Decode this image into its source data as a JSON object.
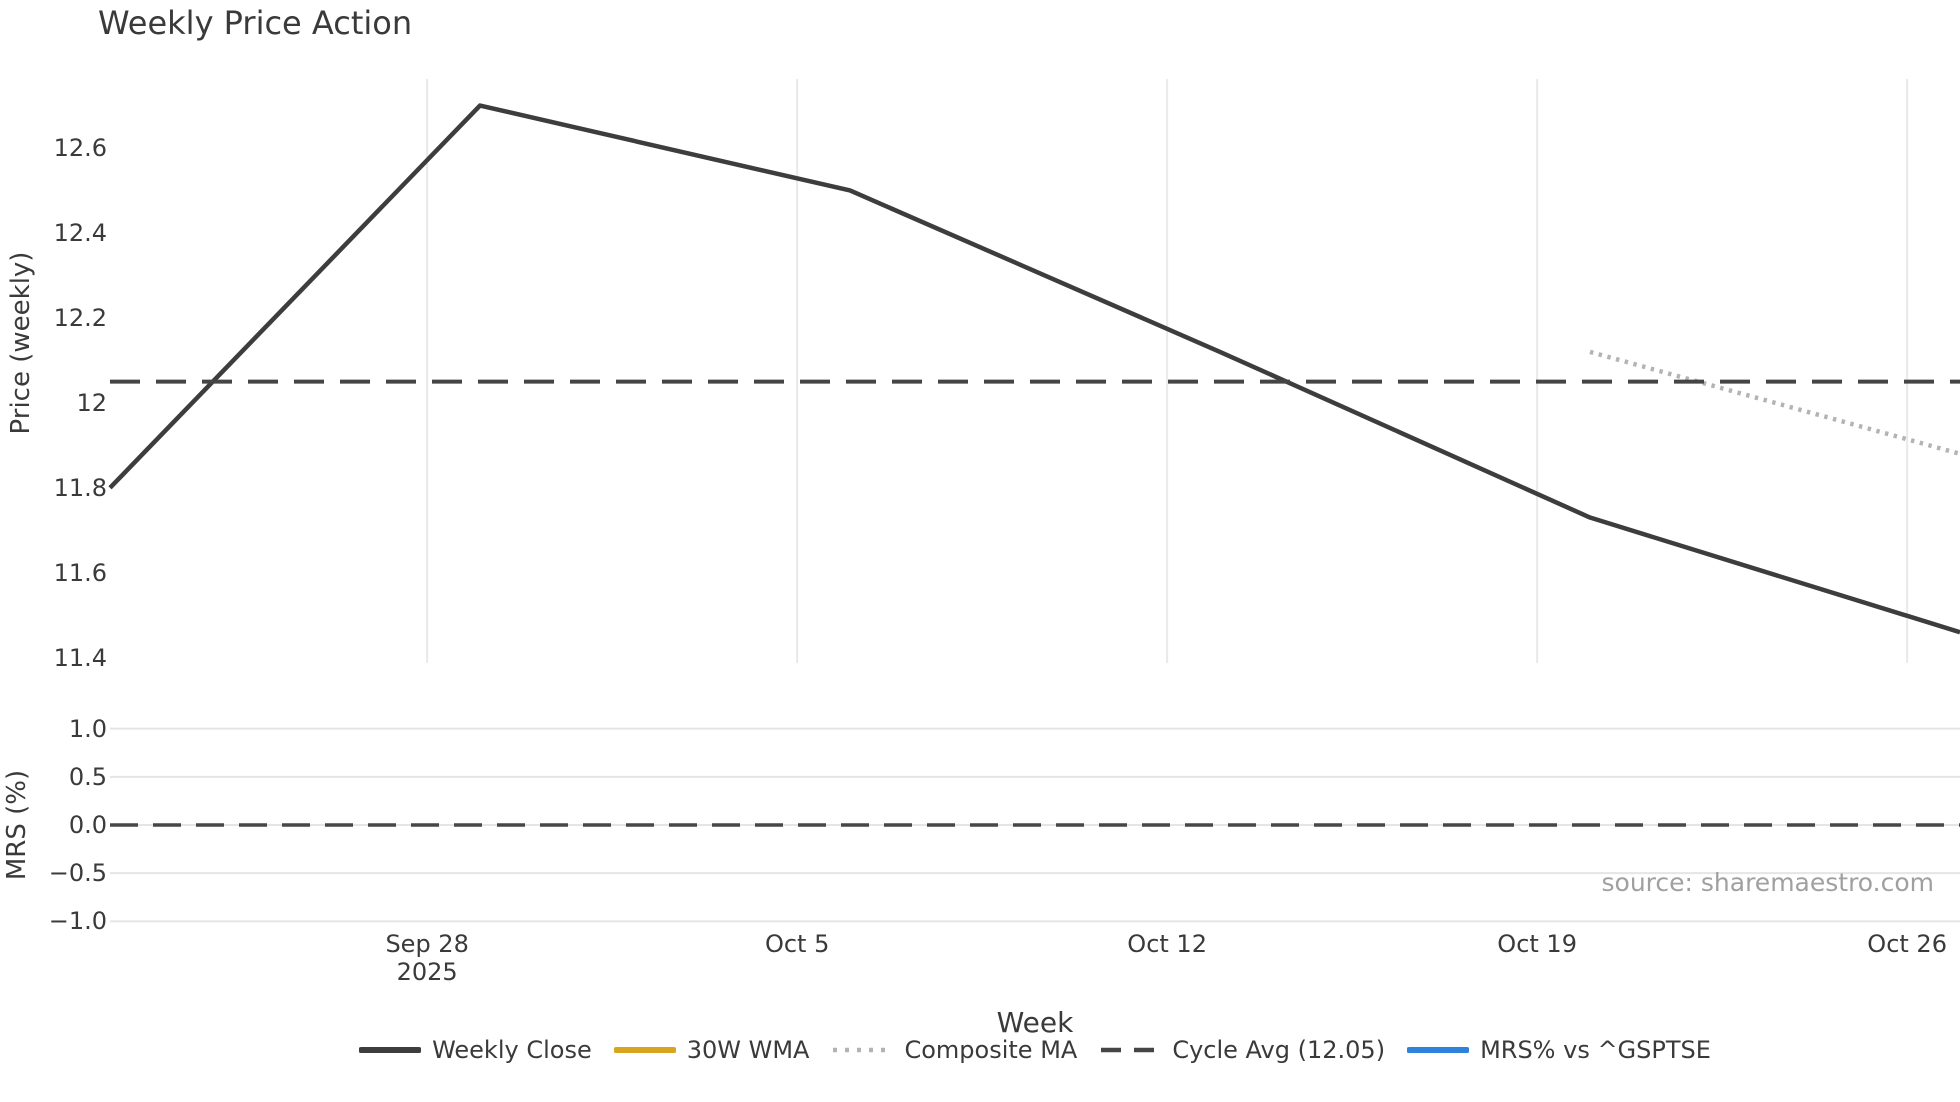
{
  "chart_data": {
    "type": "line",
    "title": "Weekly Price Action",
    "source": "source: sharemaestro.com",
    "x_axis": {
      "label": "Week",
      "tick_labels": [
        "Sep 28",
        "Oct 5",
        "Oct 12",
        "Oct 19",
        "Oct 26"
      ],
      "tick_days": [
        6,
        13,
        20,
        27,
        34
      ],
      "year_label": "2025",
      "domain_days": [
        0,
        35
      ],
      "point_dates": [
        "2025-09-22",
        "2025-09-29",
        "2025-10-06",
        "2025-10-13",
        "2025-10-20",
        "2025-10-27"
      ]
    },
    "panels": [
      {
        "ylabel": "Price (weekly)",
        "ylim": [
          11.3875,
          12.7625
        ],
        "ytick_values": [
          12.6,
          12.4,
          12.2,
          12,
          11.8,
          11.6,
          11.4
        ],
        "ytick_labels": [
          "12.6",
          "12.4",
          "12.2",
          "12",
          "11.8",
          "11.6",
          "11.4"
        ],
        "grid": "vertical"
      },
      {
        "ylabel": "MRS (%)",
        "ylim": [
          -1.1,
          1.1
        ],
        "ytick_values": [
          1.0,
          0.5,
          0.0,
          -0.5,
          -1.0
        ],
        "ytick_labels": [
          "1.0",
          "0.5",
          "0.0",
          "−0.5",
          "−1.0"
        ],
        "grid": "horizontal",
        "zero_dashed_line": 0.0
      }
    ],
    "series": [
      {
        "name": "Weekly Close",
        "type": "line",
        "style": "solid",
        "color": "#3d3d3d",
        "panel": 0,
        "x_days": [
          0,
          7,
          14,
          21,
          28,
          35
        ],
        "values": [
          11.8,
          12.7,
          12.5,
          12.12,
          11.73,
          11.46
        ]
      },
      {
        "name": "30W WMA",
        "type": "line",
        "style": "solid",
        "color": "#d9a521",
        "panel": 0,
        "x_days": [],
        "values": []
      },
      {
        "name": "Composite MA",
        "type": "line",
        "style": "dotted",
        "color": "#b3b3b3",
        "panel": 0,
        "x_days": [
          28,
          35
        ],
        "values": [
          12.12,
          11.88
        ]
      },
      {
        "name": "Cycle Avg (12.05)",
        "type": "hline",
        "style": "dashed",
        "color": "#454545",
        "panel": 0,
        "value": 12.05
      },
      {
        "name": "MRS% vs ^GSPTSE",
        "type": "line",
        "style": "solid",
        "color": "#2d82dc",
        "panel": 1,
        "x_days": [],
        "values": []
      }
    ]
  }
}
